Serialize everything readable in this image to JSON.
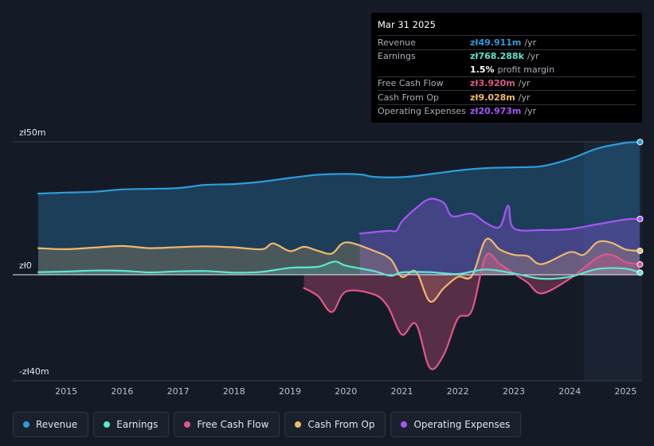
{
  "tooltip": {
    "date": "Mar 31 2025",
    "rows": [
      {
        "label": "Revenue",
        "value": "zł49.911m",
        "unit": "/yr",
        "color": "#2d9cdb"
      },
      {
        "label": "Earnings",
        "value": "zł768.288k",
        "unit": "/yr",
        "color": "#5ee6d0"
      },
      {
        "label": "",
        "value": "1.5%",
        "unit": "profit margin",
        "color": "#ffffff"
      },
      {
        "label": "Free Cash Flow",
        "value": "zł3.920m",
        "unit": "/yr",
        "color": "#e0578c"
      },
      {
        "label": "Cash From Op",
        "value": "zł9.028m",
        "unit": "/yr",
        "color": "#f0b86e"
      },
      {
        "label": "Operating Expenses",
        "value": "zł20.973m",
        "unit": "/yr",
        "color": "#a855f7"
      }
    ]
  },
  "legend": [
    {
      "label": "Revenue",
      "color": "#2d9cdb"
    },
    {
      "label": "Earnings",
      "color": "#5ee6d0"
    },
    {
      "label": "Free Cash Flow",
      "color": "#e0578c"
    },
    {
      "label": "Cash From Op",
      "color": "#f0b86e"
    },
    {
      "label": "Operating Expenses",
      "color": "#a855f7"
    }
  ],
  "chart_data": {
    "type": "area",
    "title": "",
    "xlabel": "",
    "ylabel": "",
    "y_tick_labels": {
      "top": "zł50m",
      "zero": "zł0",
      "bottom": "-zł40m"
    },
    "ylim": [
      -40,
      50
    ],
    "xlim": [
      2014.5,
      2025.25
    ],
    "x_ticks": [
      2015,
      2016,
      2017,
      2018,
      2019,
      2020,
      2021,
      2022,
      2023,
      2024,
      2025
    ],
    "highlight_from": 2024.25,
    "series": [
      {
        "name": "Revenue",
        "color": "#2d9cdb",
        "points": [
          [
            2014.5,
            30.5
          ],
          [
            2015,
            30.9
          ],
          [
            2015.5,
            31.2
          ],
          [
            2016,
            32.1
          ],
          [
            2016.5,
            32.3
          ],
          [
            2017,
            32.6
          ],
          [
            2017.5,
            33.8
          ],
          [
            2018,
            34.1
          ],
          [
            2018.5,
            35.0
          ],
          [
            2019,
            36.4
          ],
          [
            2019.5,
            37.6
          ],
          [
            2020,
            37.9
          ],
          [
            2020.3,
            37.6
          ],
          [
            2020.5,
            36.8
          ],
          [
            2021,
            36.7
          ],
          [
            2021.5,
            37.8
          ],
          [
            2022,
            39.2
          ],
          [
            2022.5,
            40.1
          ],
          [
            2023,
            40.4
          ],
          [
            2023.5,
            40.8
          ],
          [
            2024,
            43.5
          ],
          [
            2024.5,
            47.5
          ],
          [
            2025,
            49.6
          ],
          [
            2025.25,
            49.9
          ]
        ]
      },
      {
        "name": "Earnings",
        "color": "#5ee6d0",
        "points": [
          [
            2014.5,
            1.0
          ],
          [
            2015,
            1.2
          ],
          [
            2015.5,
            1.6
          ],
          [
            2016,
            1.5
          ],
          [
            2016.5,
            0.9
          ],
          [
            2017,
            1.3
          ],
          [
            2017.5,
            1.4
          ],
          [
            2018,
            0.8
          ],
          [
            2018.5,
            1.1
          ],
          [
            2019,
            2.6
          ],
          [
            2019.5,
            3.0
          ],
          [
            2019.8,
            5.0
          ],
          [
            2020,
            3.4
          ],
          [
            2020.5,
            1.4
          ],
          [
            2020.8,
            -0.4
          ],
          [
            2021,
            0.9
          ],
          [
            2021.5,
            1.0
          ],
          [
            2022,
            0.3
          ],
          [
            2022.5,
            2.0
          ],
          [
            2023,
            0.5
          ],
          [
            2023.5,
            -1.5
          ],
          [
            2024,
            -0.8
          ],
          [
            2024.5,
            2.2
          ],
          [
            2025,
            2.3
          ],
          [
            2025.25,
            0.8
          ]
        ]
      },
      {
        "name": "Free Cash Flow",
        "color": "#e0578c",
        "start": 2019.25,
        "points": [
          [
            2019.25,
            -5.0
          ],
          [
            2019.5,
            -8.0
          ],
          [
            2019.75,
            -14.0
          ],
          [
            2020,
            -6.3
          ],
          [
            2020.5,
            -7.4
          ],
          [
            2020.75,
            -12.0
          ],
          [
            2021,
            -22.5
          ],
          [
            2021.25,
            -18.5
          ],
          [
            2021.5,
            -35.0
          ],
          [
            2021.75,
            -30.0
          ],
          [
            2022,
            -16.5
          ],
          [
            2022.25,
            -13.5
          ],
          [
            2022.5,
            7.0
          ],
          [
            2022.75,
            4.0
          ],
          [
            2023,
            0.5
          ],
          [
            2023.25,
            -3.0
          ],
          [
            2023.5,
            -7.0
          ],
          [
            2024,
            -1.5
          ],
          [
            2024.5,
            6.5
          ],
          [
            2024.75,
            7.5
          ],
          [
            2025,
            4.8
          ],
          [
            2025.25,
            3.9
          ]
        ]
      },
      {
        "name": "Cash From Op",
        "color": "#f0b86e",
        "points": [
          [
            2014.5,
            10.0
          ],
          [
            2015,
            9.6
          ],
          [
            2015.5,
            10.2
          ],
          [
            2016,
            10.8
          ],
          [
            2016.5,
            10.0
          ],
          [
            2017,
            10.4
          ],
          [
            2017.5,
            10.7
          ],
          [
            2018,
            10.3
          ],
          [
            2018.5,
            9.6
          ],
          [
            2018.7,
            11.8
          ],
          [
            2019,
            8.9
          ],
          [
            2019.25,
            10.5
          ],
          [
            2019.5,
            9.0
          ],
          [
            2019.75,
            8.0
          ],
          [
            2020,
            12.2
          ],
          [
            2020.5,
            9.0
          ],
          [
            2020.8,
            5.8
          ],
          [
            2021,
            -0.8
          ],
          [
            2021.25,
            1.2
          ],
          [
            2021.5,
            -10.0
          ],
          [
            2021.75,
            -5.0
          ],
          [
            2022,
            -0.8
          ],
          [
            2022.25,
            -0.5
          ],
          [
            2022.5,
            13.2
          ],
          [
            2022.75,
            9.5
          ],
          [
            2023,
            7.5
          ],
          [
            2023.25,
            7.0
          ],
          [
            2023.5,
            4.0
          ],
          [
            2024,
            8.5
          ],
          [
            2024.25,
            7.5
          ],
          [
            2024.5,
            12.3
          ],
          [
            2024.75,
            12.0
          ],
          [
            2025,
            9.5
          ],
          [
            2025.25,
            9.0
          ]
        ]
      },
      {
        "name": "Operating Expenses",
        "color": "#a855f7",
        "start": 2020.25,
        "points": [
          [
            2020.25,
            15.5
          ],
          [
            2020.75,
            16.5
          ],
          [
            2020.9,
            16.5
          ],
          [
            2021,
            20.0
          ],
          [
            2021.25,
            25.0
          ],
          [
            2021.5,
            28.5
          ],
          [
            2021.75,
            27.0
          ],
          [
            2021.9,
            22.0
          ],
          [
            2022.25,
            23.0
          ],
          [
            2022.5,
            19.5
          ],
          [
            2022.75,
            18.0
          ],
          [
            2022.9,
            26.0
          ],
          [
            2023,
            17.5
          ],
          [
            2023.5,
            16.8
          ],
          [
            2024,
            17.2
          ],
          [
            2024.5,
            19.0
          ],
          [
            2025,
            20.8
          ],
          [
            2025.25,
            21.0
          ]
        ]
      }
    ]
  }
}
